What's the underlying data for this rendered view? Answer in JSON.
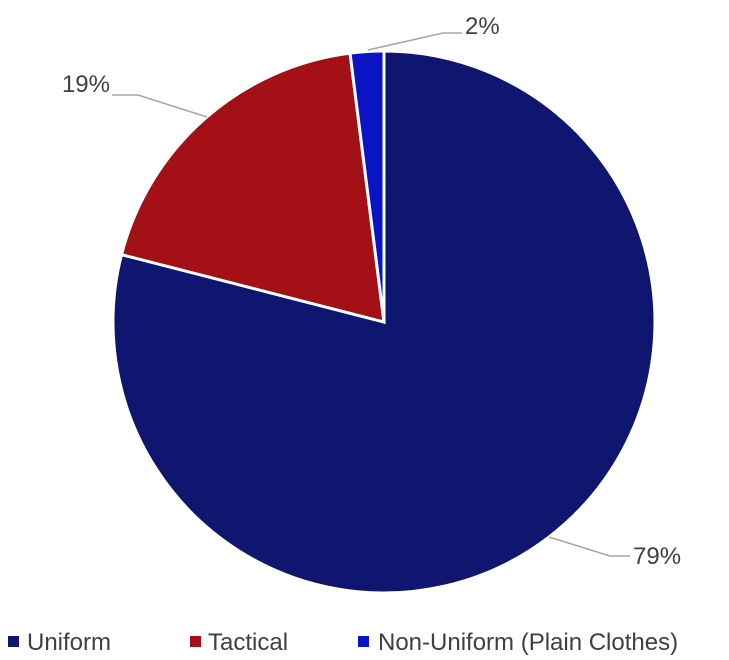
{
  "chart_data": {
    "type": "pie",
    "title": "",
    "categories": [
      "Uniform",
      "Tactical",
      "Non-Uniform (Plain Clothes)"
    ],
    "values": [
      79,
      19,
      2
    ],
    "labels": [
      "79%",
      "19%",
      "2%"
    ],
    "colors": [
      "#0e1670",
      "#a31116",
      "#0a14c4"
    ],
    "legend_position": "bottom"
  }
}
